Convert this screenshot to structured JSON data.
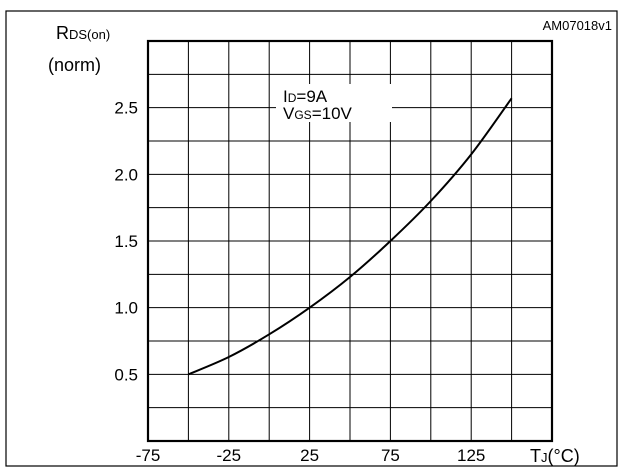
{
  "chart_data": {
    "type": "line",
    "figure_id": "AM07018v1",
    "ylabel_main": "R",
    "ylabel_sub": "DS(on)",
    "ylabel_unit": "(norm)",
    "xlabel_main": "T",
    "xlabel_sub": "J",
    "xlabel_unit": "(°C)",
    "annotation": {
      "id_main": "I",
      "id_sub": "D",
      "id_value": "=9A",
      "vgs_main": "V",
      "vgs_sub": "GS",
      "vgs_value": "=10V"
    },
    "xlim": [
      -75,
      175
    ],
    "ylim": [
      0,
      3.0
    ],
    "x_grid_step": 25,
    "y_grid_step": 0.25,
    "x_ticks": [
      -75,
      -25,
      25,
      75,
      125
    ],
    "x_tick_labels": [
      "-75",
      "-25",
      "25",
      "75",
      "125"
    ],
    "y_ticks": [
      0.5,
      1.0,
      1.5,
      2.0,
      2.5
    ],
    "y_tick_labels": [
      "0.5",
      "1.0",
      "1.5",
      "2.0",
      "2.5"
    ],
    "grid": true,
    "series": [
      {
        "x": [
          -50,
          -25,
          0,
          25,
          50,
          75,
          100,
          125,
          150
        ],
        "y": [
          0.5,
          0.63,
          0.8,
          1.0,
          1.23,
          1.5,
          1.8,
          2.15,
          2.57
        ]
      }
    ]
  }
}
